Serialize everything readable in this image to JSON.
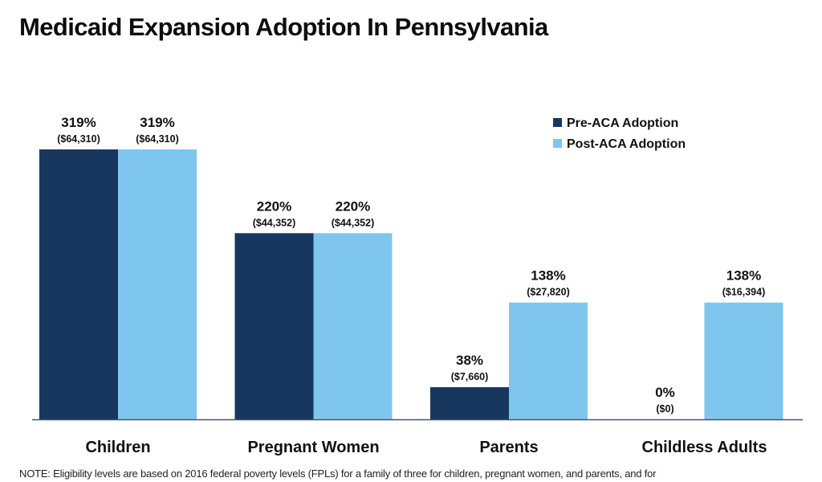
{
  "title": {
    "line2": "Medicaid Expansion Adoption In Pennsylvania"
  },
  "note": "NOTE: Eligibility levels are based on 2016 federal poverty levels (FPLs) for a family of three for children, pregnant women, and parents, and for",
  "colors": {
    "pre": "#17375E",
    "post": "#7FC6EE",
    "axis": "#44546A"
  },
  "chart_data": {
    "type": "bar",
    "title": "Medicaid Expansion Adoption In Pennsylvania",
    "xlabel": "",
    "ylabel": "",
    "unit": "% of FPL",
    "ylim": [
      0,
      319
    ],
    "grid": false,
    "legend_position": "top-right",
    "categories": [
      "Children",
      "Pregnant Women",
      "Parents",
      "Childless Adults"
    ],
    "series": [
      {
        "name": "Pre-ACA Adoption",
        "values": [
          319,
          220,
          38,
          0
        ],
        "labels": [
          "319%",
          "220%",
          "38%",
          "0%"
        ],
        "dollar_labels": [
          "($64,310)",
          "($44,352)",
          "($7,660)",
          "($0)"
        ]
      },
      {
        "name": "Post-ACA Adoption",
        "values": [
          319,
          220,
          138,
          138
        ],
        "labels": [
          "319%",
          "220%",
          "138%",
          "138%"
        ],
        "dollar_labels": [
          "($64,310)",
          "($44,352)",
          "($27,820)",
          "($16,394)"
        ]
      }
    ]
  }
}
